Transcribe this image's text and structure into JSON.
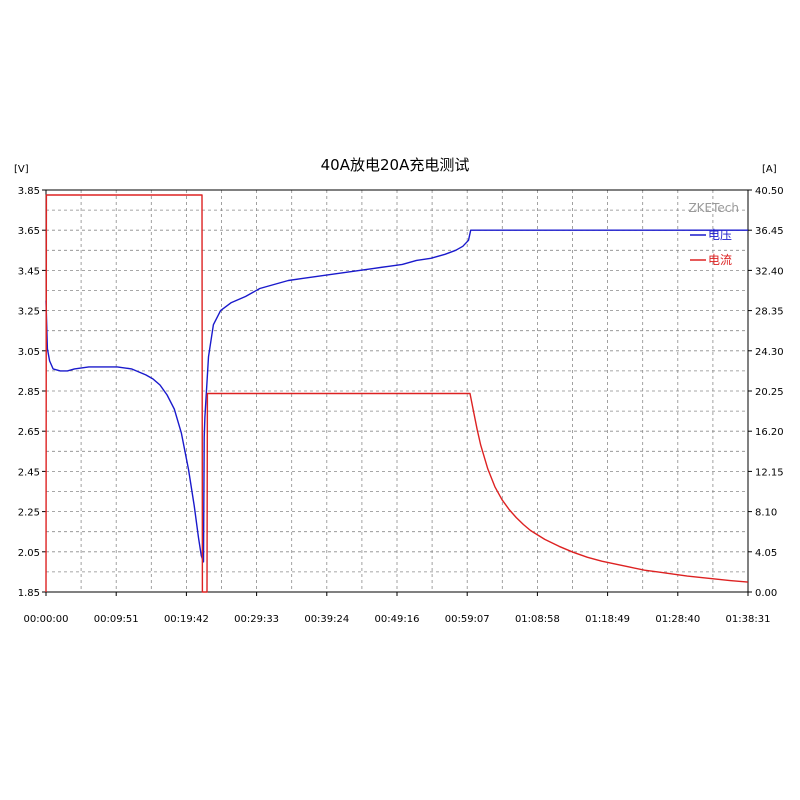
{
  "chart_data": {
    "type": "line",
    "title": "40A放电20A充电测试",
    "watermark": "ZKETech",
    "left_unit": "[V]",
    "right_unit": "[A]",
    "y_left": {
      "ylim": [
        1.85,
        3.85
      ],
      "ticks": [
        "3.85",
        "3.65",
        "3.45",
        "3.25",
        "3.05",
        "2.85",
        "2.65",
        "2.45",
        "2.25",
        "2.05",
        "1.85"
      ]
    },
    "y_right": {
      "ylim": [
        0,
        40.5
      ],
      "ticks": [
        "40.50",
        "36.45",
        "32.40",
        "28.35",
        "24.30",
        "20.25",
        "16.20",
        "12.15",
        "8.10",
        "4.05",
        "0.00"
      ]
    },
    "x_axis": {
      "unit": "minutes",
      "xlim": [
        0,
        98.52
      ],
      "tick_labels": [
        "00:00:00",
        "00:09:51",
        "00:19:42",
        "00:29:33",
        "00:39:24",
        "00:49:16",
        "00:59:07",
        "01:08:58",
        "01:18:49",
        "01:28:40",
        "01:38:31"
      ]
    },
    "grid": true,
    "legend_position": "top-right",
    "series": [
      {
        "name": "电压",
        "axis": "left",
        "color": "#1a1acc",
        "x": [
          0,
          0.2,
          0.5,
          1,
          2,
          3,
          4,
          6,
          8,
          10,
          12,
          14,
          15,
          16,
          17,
          18,
          19,
          20,
          20.8,
          21.4,
          21.8,
          22.1,
          22.2,
          22.3,
          22.8,
          23.5,
          24.5,
          26,
          28,
          30,
          32,
          34,
          36,
          38,
          40,
          42,
          44,
          46,
          48,
          50,
          52,
          54,
          56,
          57.5,
          58.5,
          59.3,
          59.6,
          98.5
        ],
        "y": [
          3.3,
          3.06,
          3.0,
          2.96,
          2.95,
          2.95,
          2.96,
          2.97,
          2.97,
          2.97,
          2.96,
          2.93,
          2.91,
          2.88,
          2.83,
          2.76,
          2.64,
          2.46,
          2.28,
          2.12,
          2.03,
          2.0,
          2.62,
          2.72,
          3.02,
          3.18,
          3.25,
          3.29,
          3.32,
          3.36,
          3.38,
          3.4,
          3.41,
          3.42,
          3.43,
          3.44,
          3.45,
          3.46,
          3.47,
          3.48,
          3.5,
          3.51,
          3.53,
          3.55,
          3.57,
          3.6,
          3.65,
          3.65
        ]
      },
      {
        "name": "电流",
        "axis": "right",
        "color": "#dd2222",
        "x": [
          0,
          0.05,
          21.9,
          21.95,
          22.6,
          22.65,
          59.5,
          60,
          60.5,
          61,
          62,
          63,
          64,
          65,
          66,
          67,
          68,
          70,
          72,
          74,
          76,
          78,
          80,
          82,
          84,
          86,
          88,
          90,
          92,
          94,
          96,
          98.5
        ],
        "y": [
          0,
          40.0,
          40.0,
          0,
          0,
          20.0,
          20.0,
          18.2,
          16.4,
          14.8,
          12.4,
          10.6,
          9.3,
          8.3,
          7.5,
          6.8,
          6.2,
          5.3,
          4.6,
          4.0,
          3.5,
          3.1,
          2.8,
          2.5,
          2.2,
          2.0,
          1.8,
          1.6,
          1.45,
          1.3,
          1.15,
          1.0
        ]
      }
    ]
  }
}
